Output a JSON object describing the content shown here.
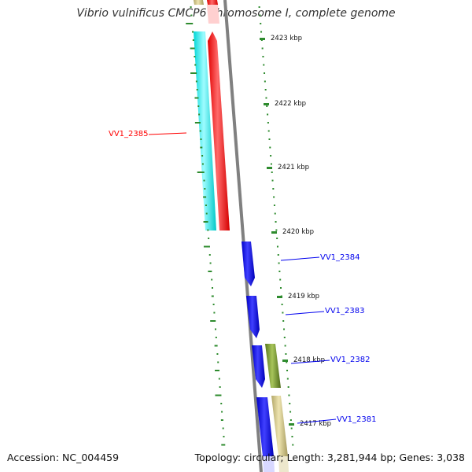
{
  "title": "Vibrio vulnificus CMCP6 chromosome I, complete genome",
  "footer": {
    "accession": "Accession: NC_004459",
    "genome_info": "Topology: circular; Length: 3,281,944 bp; Genes: 3,038"
  },
  "tick_labels": [
    "2423 kbp",
    "2422 kbp",
    "2421 kbp",
    "2420 kbp",
    "2419 kbp",
    "2418 kbp",
    "2417 kbp"
  ],
  "genes": [
    {
      "label": "VV1_2385",
      "color": "#ff0000"
    },
    {
      "label": "VV1_2384",
      "color": "#0000ee"
    },
    {
      "label": "VV1_2383",
      "color": "#0000ee"
    },
    {
      "label": "VV1_2382",
      "color": "#0000ee"
    },
    {
      "label": "VV1_2381",
      "color": "#0000ee"
    }
  ],
  "colors": {
    "cds_forward": "#0000ee",
    "cds_reverse": "#ff0000",
    "rna_track": "#00e5e5",
    "olive_feature": "#6b8e23",
    "tan_feature": "#c8bd7e",
    "backbone": "#808080",
    "gc_ticks": "#2e8b2e"
  }
}
